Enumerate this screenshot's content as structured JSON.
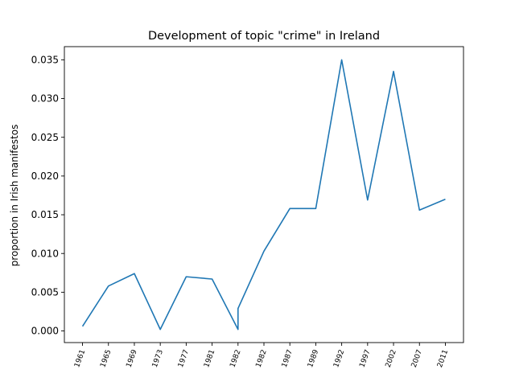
{
  "chart_data": {
    "type": "line",
    "title": "Development of topic \"crime\" in Ireland",
    "xlabel": "",
    "ylabel": "proportion in Irish manifestos",
    "categories": [
      "1961",
      "1965",
      "1969",
      "1973",
      "1977",
      "1981",
      "1982",
      "1982",
      "1987",
      "1989",
      "1992",
      "1997",
      "2002",
      "2007",
      "2011"
    ],
    "series": [
      {
        "color": "#1f77b4",
        "points": [
          {
            "xi": 0,
            "y": 0.0006
          },
          {
            "xi": 1,
            "y": 0.0058
          },
          {
            "xi": 2,
            "y": 0.0074
          },
          {
            "xi": 3,
            "y": 0.0002
          },
          {
            "xi": 4,
            "y": 0.007
          },
          {
            "xi": 5,
            "y": 0.0067
          },
          {
            "xi": 6,
            "y": 0.0002
          },
          {
            "xi": 6,
            "y": 0.0029
          },
          {
            "xi": 7,
            "y": 0.0103
          },
          {
            "xi": 8,
            "y": 0.0158
          },
          {
            "xi": 9,
            "y": 0.0158
          },
          {
            "xi": 10,
            "y": 0.035
          },
          {
            "xi": 11,
            "y": 0.0169
          },
          {
            "xi": 12,
            "y": 0.0335
          },
          {
            "xi": 13,
            "y": 0.0156
          },
          {
            "xi": 14,
            "y": 0.017
          }
        ]
      }
    ],
    "yticks": [
      "0.000",
      "0.005",
      "0.010",
      "0.015",
      "0.020",
      "0.025",
      "0.030",
      "0.035"
    ],
    "ylim": [
      -0.0015,
      0.0367
    ],
    "xlim": [
      -0.7,
      14.7
    ],
    "grid": false,
    "legend": "none"
  }
}
